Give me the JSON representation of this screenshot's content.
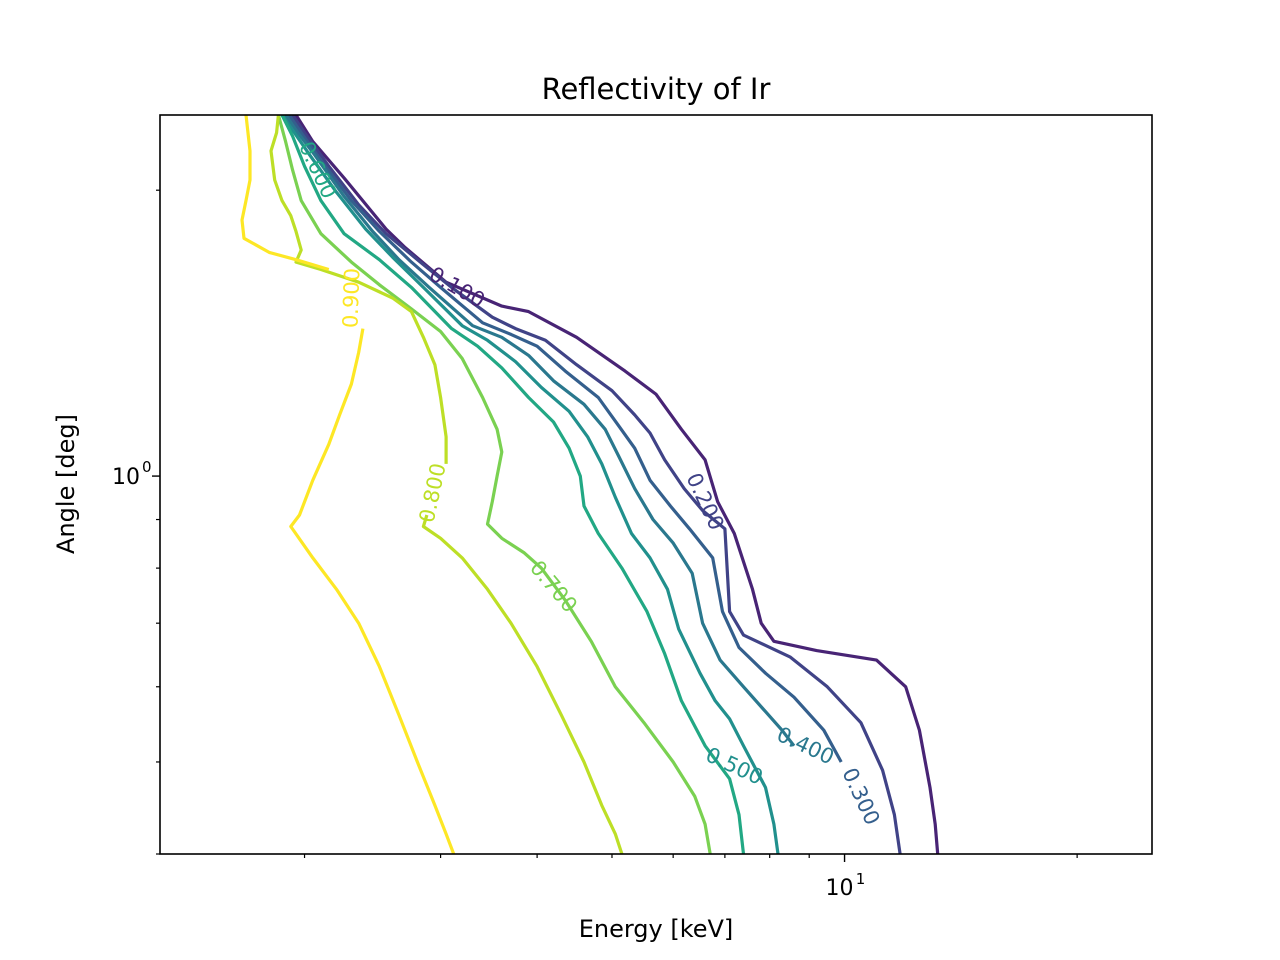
{
  "chart_data": {
    "type": "contour",
    "title": "Reflectivity of Ir",
    "xlabel": "Energy [keV]",
    "ylabel": "Angle [deg]",
    "xscale": "log",
    "yscale": "log",
    "xlim": [
      1.3,
      25
    ],
    "ylim": [
      0.4,
      2.4
    ],
    "xticks": [
      {
        "value": 10,
        "base": "10",
        "exp": "1"
      }
    ],
    "yticks": [
      {
        "value": 1,
        "base": "10",
        "exp": "0"
      }
    ],
    "xminor": [
      2,
      3,
      4,
      5,
      6,
      7,
      8,
      9,
      20
    ],
    "yminor": [
      0.4,
      0.5,
      0.6,
      0.7,
      0.8,
      0.9,
      2
    ],
    "grid": false,
    "legend": "none",
    "levels": [
      {
        "level": 0.1,
        "label": "0.100",
        "color": "#482475",
        "points": [
          [
            1.95,
            2.4
          ],
          [
            2.05,
            2.25
          ],
          [
            2.25,
            2.06
          ],
          [
            2.55,
            1.82
          ],
          [
            2.7,
            1.74
          ],
          [
            3.05,
            1.6
          ],
          [
            3.6,
            1.51
          ],
          [
            3.9,
            1.49
          ],
          [
            4.5,
            1.4
          ],
          [
            5.2,
            1.29
          ],
          [
            5.7,
            1.22
          ],
          [
            6.15,
            1.12
          ],
          [
            6.6,
            1.04
          ],
          [
            6.85,
            0.94
          ],
          [
            7.2,
            0.87
          ],
          [
            7.6,
            0.76
          ],
          [
            7.8,
            0.7
          ],
          [
            8.1,
            0.67
          ],
          [
            9.2,
            0.655
          ],
          [
            11.0,
            0.64
          ],
          [
            12.0,
            0.6
          ],
          [
            12.5,
            0.54
          ],
          [
            12.9,
            0.47
          ],
          [
            13.1,
            0.43
          ],
          [
            13.2,
            0.4
          ]
        ],
        "labels": [
          {
            "x": 3.15,
            "y": 1.58,
            "angle": 30,
            "text": "0.100"
          }
        ]
      },
      {
        "level": 0.2,
        "label": "0.200",
        "color": "#404387",
        "points": [
          [
            1.93,
            2.4
          ],
          [
            2.0,
            2.3
          ],
          [
            2.15,
            2.12
          ],
          [
            2.35,
            1.93
          ],
          [
            2.55,
            1.8
          ],
          [
            2.85,
            1.67
          ],
          [
            3.1,
            1.58
          ],
          [
            3.5,
            1.47
          ],
          [
            3.75,
            1.43
          ],
          [
            4.1,
            1.39
          ],
          [
            4.5,
            1.31
          ],
          [
            5.0,
            1.23
          ],
          [
            5.35,
            1.16
          ],
          [
            5.6,
            1.11
          ],
          [
            5.85,
            1.04
          ],
          [
            6.2,
            0.97
          ],
          [
            6.55,
            0.92
          ],
          [
            7.0,
            0.88
          ],
          [
            7.1,
            0.72
          ],
          [
            7.4,
            0.68
          ],
          [
            8.5,
            0.645
          ],
          [
            9.5,
            0.6
          ],
          [
            10.5,
            0.55
          ],
          [
            11.2,
            0.49
          ],
          [
            11.6,
            0.44
          ],
          [
            11.8,
            0.4
          ]
        ],
        "labels": [
          {
            "x": 6.6,
            "y": 0.94,
            "angle": 65,
            "text": "0.200"
          }
        ]
      },
      {
        "level": 0.3,
        "label": "0.300",
        "color": "#345f8d",
        "points": [
          [
            1.91,
            2.4
          ],
          [
            1.98,
            2.3
          ],
          [
            2.1,
            2.15
          ],
          [
            2.3,
            1.95
          ],
          [
            2.5,
            1.81
          ],
          [
            2.75,
            1.68
          ],
          [
            3.0,
            1.58
          ],
          [
            3.4,
            1.45
          ],
          [
            3.7,
            1.41
          ],
          [
            4.0,
            1.37
          ],
          [
            4.35,
            1.29
          ],
          [
            4.8,
            1.21
          ],
          [
            5.1,
            1.13
          ],
          [
            5.35,
            1.07
          ],
          [
            5.6,
            0.99
          ],
          [
            5.95,
            0.93
          ],
          [
            6.3,
            0.88
          ],
          [
            6.75,
            0.82
          ],
          [
            6.95,
            0.72
          ],
          [
            7.3,
            0.66
          ],
          [
            7.9,
            0.62
          ],
          [
            8.6,
            0.585
          ],
          [
            9.4,
            0.54
          ],
          [
            9.9,
            0.5
          ]
        ],
        "labels": [
          {
            "x": 10.5,
            "y": 0.46,
            "angle": 65,
            "text": "0.300"
          }
        ]
      },
      {
        "level": 0.4,
        "label": "0.400",
        "color": "#2a788e",
        "points": [
          [
            1.89,
            2.4
          ],
          [
            1.96,
            2.3
          ],
          [
            2.06,
            2.18
          ],
          [
            2.25,
            1.97
          ],
          [
            2.45,
            1.81
          ],
          [
            2.65,
            1.69
          ],
          [
            2.9,
            1.58
          ],
          [
            3.3,
            1.44
          ],
          [
            3.6,
            1.4
          ],
          [
            3.9,
            1.34
          ],
          [
            4.2,
            1.26
          ],
          [
            4.6,
            1.19
          ],
          [
            4.9,
            1.12
          ],
          [
            5.1,
            1.05
          ],
          [
            5.35,
            0.97
          ],
          [
            5.65,
            0.9
          ],
          [
            6.0,
            0.85
          ],
          [
            6.35,
            0.79
          ],
          [
            6.55,
            0.7
          ],
          [
            6.9,
            0.64
          ],
          [
            7.4,
            0.6
          ],
          [
            7.9,
            0.565
          ],
          [
            8.3,
            0.54
          ],
          [
            8.6,
            0.52
          ]
        ],
        "labels": [
          {
            "x": 8.9,
            "y": 0.52,
            "angle": 25,
            "text": "0.400"
          }
        ]
      },
      {
        "level": 0.5,
        "label": "0.500",
        "color": "#21908d",
        "points": [
          [
            1.87,
            2.4
          ],
          [
            1.94,
            2.3
          ],
          [
            2.03,
            2.18
          ],
          [
            2.2,
            1.99
          ],
          [
            2.4,
            1.82
          ],
          [
            2.6,
            1.7
          ],
          [
            2.85,
            1.58
          ],
          [
            3.2,
            1.44
          ],
          [
            3.45,
            1.39
          ],
          [
            3.75,
            1.32
          ],
          [
            4.05,
            1.24
          ],
          [
            4.4,
            1.17
          ],
          [
            4.65,
            1.1
          ],
          [
            4.85,
            1.03
          ],
          [
            5.05,
            0.95
          ],
          [
            5.3,
            0.87
          ],
          [
            5.6,
            0.82
          ],
          [
            5.9,
            0.76
          ],
          [
            6.1,
            0.69
          ],
          [
            6.5,
            0.62
          ],
          [
            6.8,
            0.58
          ],
          [
            7.1,
            0.555
          ],
          [
            7.4,
            0.52
          ],
          [
            7.9,
            0.47
          ],
          [
            8.1,
            0.43
          ],
          [
            8.2,
            0.4
          ]
        ],
        "labels": [
          {
            "x": 7.2,
            "y": 0.495,
            "angle": 25,
            "text": "0.500"
          }
        ]
      },
      {
        "level": 0.6,
        "label": "0.600",
        "color": "#22a884",
        "points": [
          [
            1.87,
            2.4
          ],
          [
            1.93,
            2.28
          ],
          [
            2.0,
            2.12
          ],
          [
            2.1,
            1.95
          ],
          [
            2.25,
            1.8
          ],
          [
            2.5,
            1.69
          ],
          [
            2.75,
            1.58
          ],
          [
            3.1,
            1.43
          ],
          [
            3.35,
            1.37
          ],
          [
            3.6,
            1.3
          ],
          [
            3.9,
            1.21
          ],
          [
            4.2,
            1.14
          ],
          [
            4.4,
            1.07
          ],
          [
            4.55,
            1.0
          ],
          [
            4.6,
            0.93
          ],
          [
            4.8,
            0.87
          ],
          [
            5.15,
            0.8
          ],
          [
            5.55,
            0.72
          ],
          [
            5.85,
            0.65
          ],
          [
            6.15,
            0.58
          ],
          [
            6.6,
            0.52
          ],
          [
            7.1,
            0.48
          ],
          [
            7.3,
            0.44
          ],
          [
            7.4,
            0.4
          ]
        ],
        "labels": [
          {
            "x": 2.08,
            "y": 2.1,
            "angle": 65,
            "text": "0.600"
          }
        ]
      },
      {
        "level": 0.7,
        "label": "0.700",
        "color": "#7ad151",
        "points": [
          [
            1.85,
            2.4
          ],
          [
            1.89,
            2.25
          ],
          [
            1.93,
            2.1
          ],
          [
            1.98,
            1.95
          ],
          [
            2.1,
            1.8
          ],
          [
            2.3,
            1.68
          ],
          [
            2.5,
            1.59
          ],
          [
            2.75,
            1.5
          ],
          [
            3.0,
            1.42
          ],
          [
            3.2,
            1.33
          ],
          [
            3.4,
            1.21
          ],
          [
            3.55,
            1.12
          ],
          [
            3.6,
            1.06
          ],
          [
            3.55,
            1.0
          ],
          [
            3.5,
            0.94
          ],
          [
            3.45,
            0.89
          ],
          [
            3.6,
            0.86
          ],
          [
            3.85,
            0.83
          ],
          [
            4.05,
            0.8
          ],
          [
            4.35,
            0.74
          ],
          [
            4.7,
            0.67
          ],
          [
            5.05,
            0.6
          ],
          [
            5.5,
            0.55
          ],
          [
            6.0,
            0.5
          ],
          [
            6.4,
            0.46
          ],
          [
            6.6,
            0.43
          ],
          [
            6.7,
            0.4
          ]
        ],
        "labels": [
          {
            "x": 4.2,
            "y": 0.765,
            "angle": 50,
            "text": "0.700"
          }
        ]
      },
      {
        "level": 0.8,
        "label": "0.800",
        "color": "#bddf26",
        "points": [
          [
            1.85,
            2.4
          ],
          [
            1.84,
            2.3
          ],
          [
            1.81,
            2.2
          ],
          [
            1.83,
            2.05
          ],
          [
            1.87,
            1.95
          ],
          [
            1.92,
            1.88
          ],
          [
            1.95,
            1.81
          ],
          [
            1.98,
            1.73
          ],
          [
            1.95,
            1.68
          ],
          [
            2.1,
            1.65
          ],
          [
            2.35,
            1.6
          ],
          [
            2.6,
            1.54
          ],
          [
            2.75,
            1.49
          ],
          [
            2.85,
            1.4
          ],
          [
            2.95,
            1.31
          ],
          [
            3.0,
            1.21
          ],
          [
            3.05,
            1.1
          ],
          [
            3.05,
            1.03
          ]
        ],
        "labels": [
          {
            "x": 2.93,
            "y": 0.96,
            "angle": -78,
            "text": "0.800"
          }
        ]
      },
      {
        "level": 0.8,
        "label": "",
        "color": "#bddf26",
        "points": [
          [
            2.88,
            0.91
          ],
          [
            2.85,
            0.885
          ],
          [
            3.0,
            0.86
          ],
          [
            3.2,
            0.82
          ],
          [
            3.45,
            0.76
          ],
          [
            3.7,
            0.7
          ],
          [
            4.0,
            0.63
          ],
          [
            4.3,
            0.56
          ],
          [
            4.6,
            0.5
          ],
          [
            4.85,
            0.45
          ],
          [
            5.05,
            0.42
          ],
          [
            5.15,
            0.4
          ]
        ]
      },
      {
        "level": 0.9,
        "label": "0.900",
        "color": "#fde725",
        "points": [
          [
            1.68,
            2.4
          ],
          [
            1.7,
            2.2
          ],
          [
            1.7,
            2.05
          ],
          [
            1.68,
            1.95
          ],
          [
            1.66,
            1.86
          ],
          [
            1.67,
            1.78
          ],
          [
            1.8,
            1.72
          ],
          [
            1.95,
            1.69
          ],
          [
            2.15,
            1.65
          ]
        ],
        "labels": [
          {
            "x": 2.3,
            "y": 1.54,
            "angle": -88,
            "text": "0.900"
          }
        ]
      },
      {
        "level": 0.9,
        "label": "",
        "color": "#fde725",
        "points": [
          [
            2.38,
            1.43
          ],
          [
            2.35,
            1.35
          ],
          [
            2.3,
            1.25
          ],
          [
            2.22,
            1.16
          ],
          [
            2.15,
            1.08
          ],
          [
            2.05,
            0.99
          ],
          [
            1.97,
            0.91
          ],
          [
            1.92,
            0.885
          ],
          [
            2.05,
            0.82
          ],
          [
            2.2,
            0.76
          ],
          [
            2.35,
            0.7
          ],
          [
            2.5,
            0.63
          ],
          [
            2.65,
            0.56
          ],
          [
            2.8,
            0.5
          ],
          [
            2.95,
            0.45
          ],
          [
            3.05,
            0.42
          ],
          [
            3.12,
            0.4
          ]
        ]
      }
    ]
  }
}
